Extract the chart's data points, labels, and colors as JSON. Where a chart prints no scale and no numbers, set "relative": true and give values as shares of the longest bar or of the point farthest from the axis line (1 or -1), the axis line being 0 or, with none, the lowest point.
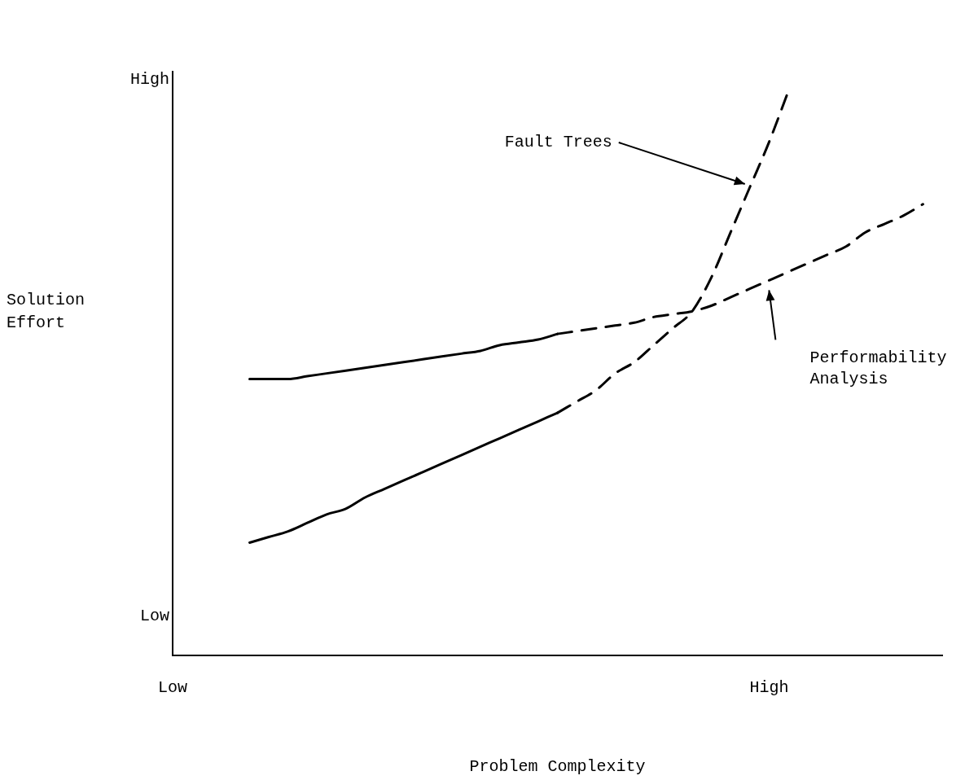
{
  "chart_data": {
    "type": "line",
    "xlabel": "Problem Complexity",
    "ylabel": "Solution Effort",
    "relative": true,
    "categories": [
      "Low",
      null,
      null,
      null,
      null,
      null,
      null,
      null,
      null,
      null,
      null,
      null,
      null,
      null,
      null,
      null,
      null,
      null,
      null,
      null,
      null,
      null,
      null,
      null,
      null,
      null,
      null,
      null,
      null,
      null,
      null,
      "High",
      null,
      null,
      null,
      null,
      null,
      null,
      null,
      null,
      null
    ],
    "grid": false,
    "legend": false,
    "marker": "none",
    "series": [
      {
        "color": "#000000",
        "line_style": "solid",
        "values": [
          null,
          null,
          null,
          null,
          0.49,
          0.49,
          0.49,
          0.495,
          0.5,
          0.505,
          0.51,
          0.515,
          0.52,
          0.525,
          0.53,
          0.535,
          0.54,
          0.55,
          0.555,
          0.56,
          0.57,
          null,
          null,
          null,
          null,
          null,
          null,
          null,
          null,
          null,
          null,
          null,
          null,
          null,
          null,
          null,
          null,
          null,
          null,
          null,
          null
        ]
      },
      {
        "color": "#000000",
        "line_style": "dashed",
        "values": [
          null,
          null,
          null,
          null,
          null,
          null,
          null,
          null,
          null,
          null,
          null,
          null,
          null,
          null,
          null,
          null,
          null,
          null,
          null,
          null,
          0.57,
          0.575,
          0.58,
          0.585,
          0.59,
          0.6,
          0.605,
          0.61,
          0.62,
          0.635,
          0.65,
          0.665,
          0.68,
          0.695,
          0.71,
          0.725,
          0.75,
          0.765,
          0.78,
          0.8,
          null
        ]
      },
      {
        "color": "#000000",
        "line_style": "solid",
        "values": [
          null,
          null,
          null,
          null,
          0.2,
          0.21,
          0.22,
          0.235,
          0.25,
          0.26,
          0.28,
          0.295,
          0.31,
          0.325,
          0.34,
          0.355,
          0.37,
          0.385,
          0.4,
          0.415,
          0.43,
          null,
          null,
          null,
          null,
          null,
          null,
          null,
          null,
          null,
          null,
          null,
          null,
          null,
          null,
          null,
          null,
          null,
          null,
          null,
          null
        ]
      },
      {
        "color": "#000000",
        "line_style": "dashed",
        "values": [
          null,
          null,
          null,
          null,
          null,
          null,
          null,
          null,
          null,
          null,
          null,
          null,
          null,
          null,
          null,
          null,
          null,
          null,
          null,
          null,
          0.43,
          0.45,
          0.47,
          0.5,
          0.52,
          0.55,
          0.58,
          0.61,
          0.67,
          0.75,
          0.83,
          0.91,
          1,
          null,
          null,
          null,
          null,
          null,
          null,
          null,
          null
        ]
      }
    ],
    "annotations": [
      "High",
      "Low",
      "Fault Trees",
      "Performability Analysis"
    ]
  }
}
